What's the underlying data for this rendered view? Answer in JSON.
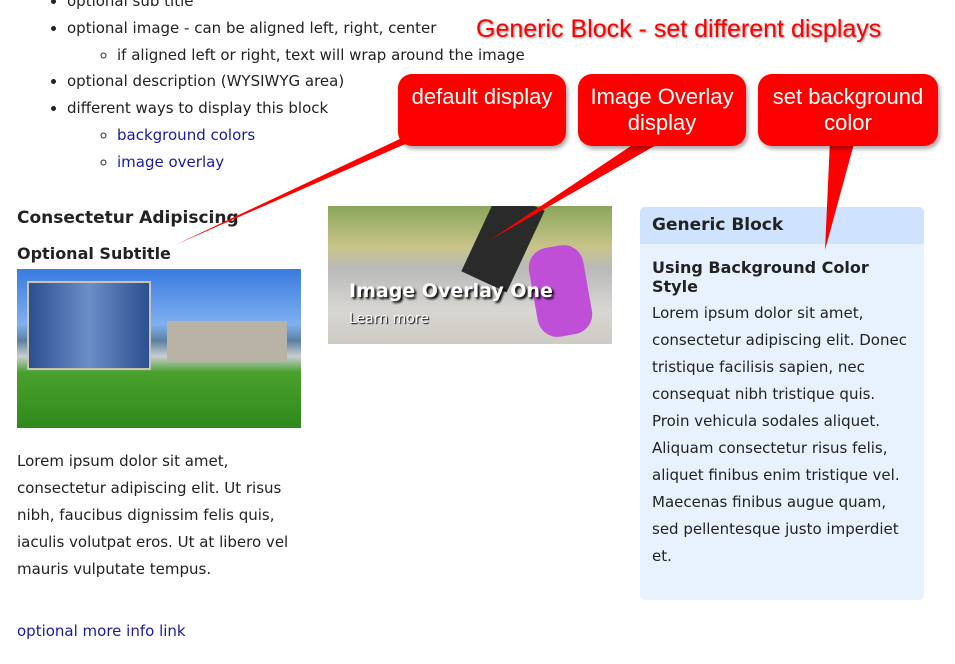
{
  "outline": {
    "items": [
      "optional sub title",
      "optional image - can be aligned left, right, center",
      "optional description (WYSIWYG area)",
      "different ways to display this block"
    ],
    "sub_image": "if aligned left or right, text will wrap around the image",
    "sub_links": [
      "background colors",
      "image overlay"
    ]
  },
  "default_block": {
    "title": "Consectetur Adipiscing",
    "subtitle": "Optional Subtitle",
    "body": "Lorem ipsum dolor sit amet, consectetur adipiscing elit. Ut risus nibh, faucibus dignissim felis quis, iaculis volutpat eros. Ut at libero vel mauris vulputate tempus.",
    "link": "optional more info link"
  },
  "overlay_block": {
    "title": "Image Overlay One",
    "link": "Learn more"
  },
  "bg_block": {
    "title": "Generic Block",
    "subtitle": "Using Background Color Style",
    "body": "Lorem ipsum dolor sit amet, consectetur adipiscing elit. Donec tristique facilisis sapien, nec consequat nibh tristique quis. Proin vehicula sodales aliquet. Aliquam consectetur risus felis, aliquet finibus enim tristique vel. Maecenas finibus augue quam, sed pellentesque justo imperdiet et.",
    "bg_color": "#e8f2ff"
  },
  "annotations": {
    "banner": "Generic Block - set different displays",
    "default": "default display",
    "overlay": "Image Overlay display",
    "background": "set background color",
    "color": "#ff0000"
  }
}
